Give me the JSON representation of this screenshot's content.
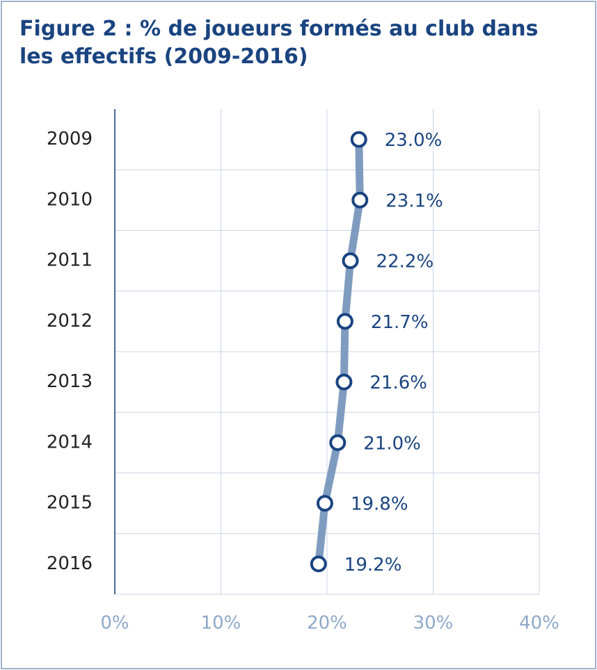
{
  "chart_data": {
    "type": "line",
    "orientation": "horizontal",
    "title": "Figure 2 : % de joueurs formés au club dans les effectifs (2009-2016)",
    "categories": [
      "2009",
      "2010",
      "2011",
      "2012",
      "2013",
      "2014",
      "2015",
      "2016"
    ],
    "values": [
      23.0,
      23.1,
      22.2,
      21.7,
      21.6,
      21.0,
      19.8,
      19.2
    ],
    "value_labels": [
      "23.0%",
      "23.1%",
      "22.2%",
      "21.7%",
      "21.6%",
      "21.0%",
      "19.8%",
      "19.2%"
    ],
    "color": "#7f9cc0",
    "marker_color": "#1a4480",
    "xlim": [
      0,
      40
    ],
    "xticks": [
      {
        "value": 0,
        "label": "0%"
      },
      {
        "value": 10,
        "label": "10%"
      },
      {
        "value": 20,
        "label": "20%"
      },
      {
        "value": 30,
        "label": "30%"
      },
      {
        "value": 40,
        "label": "40%"
      }
    ],
    "grid": true
  }
}
